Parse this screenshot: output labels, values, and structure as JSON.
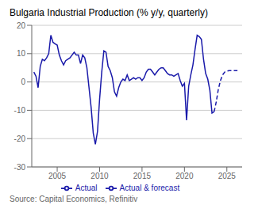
{
  "chart_data": {
    "type": "line",
    "title": "Bulgaria Industrial Production (% y/y, quarterly)",
    "annotations": [
      "Source: Capital Economics, Refinitiv"
    ],
    "xlim": [
      2002.0,
      2026.8
    ],
    "xticks": [
      2005,
      2010,
      2015,
      2020,
      2025
    ],
    "ylim": [
      -30,
      20
    ],
    "yticks": [
      -30,
      -20,
      -10,
      0,
      10,
      20
    ],
    "grid": true,
    "legend": "bottom",
    "series": [
      {
        "name": "Actual",
        "color": "#1a1aaa",
        "line_style": "solid",
        "x": [
          2002.25,
          2002.5,
          2002.75,
          2003.0,
          2003.25,
          2003.5,
          2003.75,
          2004.0,
          2004.25,
          2004.5,
          2004.75,
          2005.0,
          2005.25,
          2005.5,
          2005.75,
          2006.0,
          2006.25,
          2006.5,
          2006.75,
          2007.0,
          2007.25,
          2007.5,
          2007.75,
          2008.0,
          2008.25,
          2008.5,
          2008.75,
          2009.0,
          2009.25,
          2009.5,
          2009.75,
          2010.0,
          2010.25,
          2010.5,
          2010.75,
          2011.0,
          2011.25,
          2011.5,
          2011.75,
          2012.0,
          2012.25,
          2012.5,
          2012.75,
          2013.0,
          2013.25,
          2013.5,
          2013.75,
          2014.0,
          2014.25,
          2014.5,
          2014.75,
          2015.0,
          2015.25,
          2015.5,
          2015.75,
          2016.0,
          2016.25,
          2016.5,
          2016.75,
          2017.0,
          2017.25,
          2017.5,
          2017.75,
          2018.0,
          2018.25,
          2018.5,
          2018.75,
          2019.0,
          2019.25,
          2019.5,
          2019.75,
          2020.0,
          2020.25,
          2020.5,
          2020.75,
          2021.0,
          2021.25,
          2021.5,
          2021.75,
          2022.0,
          2022.25,
          2022.5,
          2022.75,
          2023.0,
          2023.25,
          2023.5
        ],
        "values": [
          3.5,
          2.0,
          -2.0,
          5.5,
          8.0,
          7.5,
          8.5,
          10.0,
          16.5,
          14.0,
          13.5,
          13.0,
          9.5,
          7.5,
          6.0,
          7.5,
          8.0,
          8.5,
          9.5,
          10.5,
          9.5,
          9.5,
          6.5,
          9.5,
          8.5,
          5.0,
          -2.0,
          -9.0,
          -18.0,
          -22.0,
          -17.5,
          -6.0,
          3.5,
          11.0,
          10.5,
          5.5,
          4.0,
          1.5,
          -3.5,
          -5.0,
          -2.0,
          0.0,
          1.0,
          0.5,
          2.5,
          0.5,
          1.0,
          1.5,
          1.0,
          1.5,
          1.5,
          0.5,
          1.5,
          3.5,
          4.5,
          4.5,
          3.5,
          2.5,
          3.5,
          4.5,
          5.0,
          5.0,
          4.0,
          3.0,
          2.5,
          2.5,
          2.0,
          2.5,
          3.0,
          0.5,
          -1.5,
          -0.5,
          -13.5,
          -1.5,
          2.5,
          6.0,
          11.5,
          16.5,
          16.0,
          15.0,
          8.0,
          3.0,
          1.0,
          -3.0,
          -11.0,
          -10.5
        ]
      },
      {
        "name": "Actual & forecast",
        "color": "#1a1aaa",
        "line_style": "dashed",
        "x": [
          2023.5,
          2023.75,
          2024.0,
          2024.25,
          2024.5,
          2024.75,
          2025.0,
          2025.25,
          2025.5,
          2025.75,
          2026.0,
          2026.25
        ],
        "values": [
          -10.5,
          -7.0,
          -2.5,
          0.5,
          2.5,
          3.5,
          3.8,
          4.0,
          4.0,
          4.0,
          4.0,
          4.0
        ]
      }
    ]
  }
}
